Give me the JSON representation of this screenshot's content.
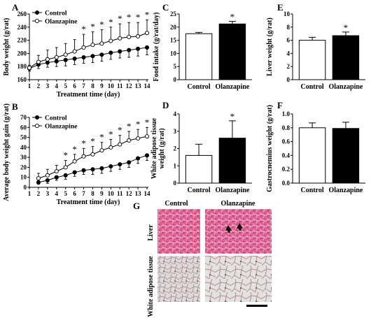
{
  "panel_letters": [
    "A",
    "B",
    "C",
    "D",
    "E",
    "F",
    "G"
  ],
  "colors": {
    "control": "#000000",
    "olanzapine": "#ffffff",
    "he_stain": "#d85a8a",
    "adipose_bg": "#d9d9d5"
  },
  "chart_data": [
    {
      "panel": "A",
      "type": "line",
      "xlabel": "Treatment time (day)",
      "ylabel": "Body weight (g/rat)",
      "x": [
        1,
        2,
        3,
        4,
        5,
        6,
        7,
        8,
        9,
        10,
        11,
        12,
        13,
        14
      ],
      "xlim": [
        1,
        14
      ],
      "ylim": [
        160,
        260
      ],
      "yticks": [
        160,
        180,
        200,
        220,
        240,
        260
      ],
      "series": [
        {
          "name": "Control",
          "marker": "filled-circle",
          "values": [
            177,
            183,
            186,
            188,
            190,
            192,
            194,
            196,
            198,
            201,
            203,
            205,
            207,
            209
          ],
          "errors": [
            4,
            6,
            7,
            8,
            9,
            9,
            9,
            10,
            10,
            10,
            10,
            11,
            11,
            11
          ]
        },
        {
          "name": "Olanzapine",
          "marker": "open-circle",
          "values": [
            178,
            187,
            191,
            194,
            198,
            203,
            209,
            213,
            215,
            219,
            223,
            225,
            226,
            231
          ],
          "errors": [
            4,
            10,
            14,
            15,
            17,
            18,
            20,
            20,
            21,
            21,
            22,
            22,
            21,
            20
          ]
        }
      ],
      "significance_markers": [
        "*",
        "*",
        "*",
        "*",
        "*",
        "*",
        "*",
        "*"
      ],
      "significance_days": [
        7,
        8,
        9,
        10,
        11,
        12,
        13,
        14
      ]
    },
    {
      "panel": "B",
      "type": "line",
      "xlabel": "Treatment time (day)",
      "ylabel": "Average body weight gain (g/rat)",
      "x": [
        2,
        3,
        4,
        5,
        6,
        7,
        8,
        9,
        10,
        11,
        12,
        13,
        14
      ],
      "xticks": [
        1,
        2,
        3,
        4,
        5,
        6,
        7,
        8,
        9,
        10,
        11,
        12,
        13,
        14
      ],
      "xlim": [
        1,
        14
      ],
      "ylim": [
        0,
        70
      ],
      "yticks": [
        0,
        10,
        20,
        30,
        40,
        50,
        60,
        70
      ],
      "series": [
        {
          "name": "Control",
          "marker": "filled-circle",
          "values": [
            5,
            7,
            10,
            12,
            15,
            17,
            18,
            19,
            21,
            23,
            25,
            29,
            32
          ],
          "errors": [
            2,
            3,
            3,
            4,
            4,
            4,
            5,
            5,
            5,
            5,
            5,
            5,
            5
          ]
        },
        {
          "name": "Olanzapine",
          "marker": "open-circle",
          "values": [
            9,
            12,
            16,
            20,
            26,
            31,
            33,
            37,
            40,
            43,
            47,
            49,
            51
          ],
          "errors": [
            5,
            6,
            6,
            7,
            7,
            8,
            8,
            8,
            8,
            9,
            9,
            9,
            9
          ]
        }
      ],
      "significance_markers": [
        "*",
        "*",
        "*",
        "*",
        "*",
        "*",
        "*",
        "*",
        "*",
        "*"
      ],
      "significance_days": [
        5,
        6,
        7,
        8,
        9,
        10,
        11,
        12,
        13,
        14
      ]
    },
    {
      "panel": "C",
      "type": "bar",
      "ylabel": "Food intake (g/rat/day)",
      "categories": [
        "Control",
        "Olanzapine"
      ],
      "values": [
        17.5,
        21.2
      ],
      "errors": [
        0.5,
        1.0
      ],
      "ylim": [
        0,
        25
      ],
      "yticks": [
        0,
        5,
        10,
        15,
        20,
        25
      ],
      "significance": [
        "",
        "*"
      ]
    },
    {
      "panel": "D",
      "type": "bar",
      "ylabel": "White adipose tissue weight (g/rat)",
      "ylabel_lines": [
        "White adipose tissue",
        "weight (g/rat)"
      ],
      "categories": [
        "Control",
        "Olanzapine"
      ],
      "values": [
        1.6,
        2.6
      ],
      "errors": [
        0.65,
        1.0
      ],
      "ylim": [
        0,
        4
      ],
      "yticks": [
        0,
        1,
        2,
        3,
        4
      ],
      "significance": [
        "",
        "*"
      ]
    },
    {
      "panel": "E",
      "type": "bar",
      "ylabel": "Liver weight (g/rat)",
      "categories": [
        "Control",
        "Olanzapine"
      ],
      "values": [
        6.0,
        6.7
      ],
      "errors": [
        0.45,
        0.55
      ],
      "ylim": [
        0,
        10
      ],
      "yticks": [
        0,
        2,
        4,
        6,
        8,
        10
      ],
      "significance": [
        "",
        "*"
      ]
    },
    {
      "panel": "F",
      "type": "bar",
      "ylabel": "Gastrocnemius weight (g/rat)",
      "categories": [
        "Control",
        "Olanzapine"
      ],
      "values": [
        0.8,
        0.79
      ],
      "errors": [
        0.07,
        0.09
      ],
      "ylim": [
        0,
        1.0
      ],
      "yticks": [
        "0.0",
        "0.2",
        "0.4",
        "0.6",
        "0.8",
        "1.0"
      ],
      "significance": [
        "",
        ""
      ]
    }
  ],
  "histology": {
    "panel": "G",
    "column_labels": [
      "Control",
      "Olanzapine"
    ],
    "row_labels": [
      "Liver",
      "White adipose tissue"
    ]
  }
}
